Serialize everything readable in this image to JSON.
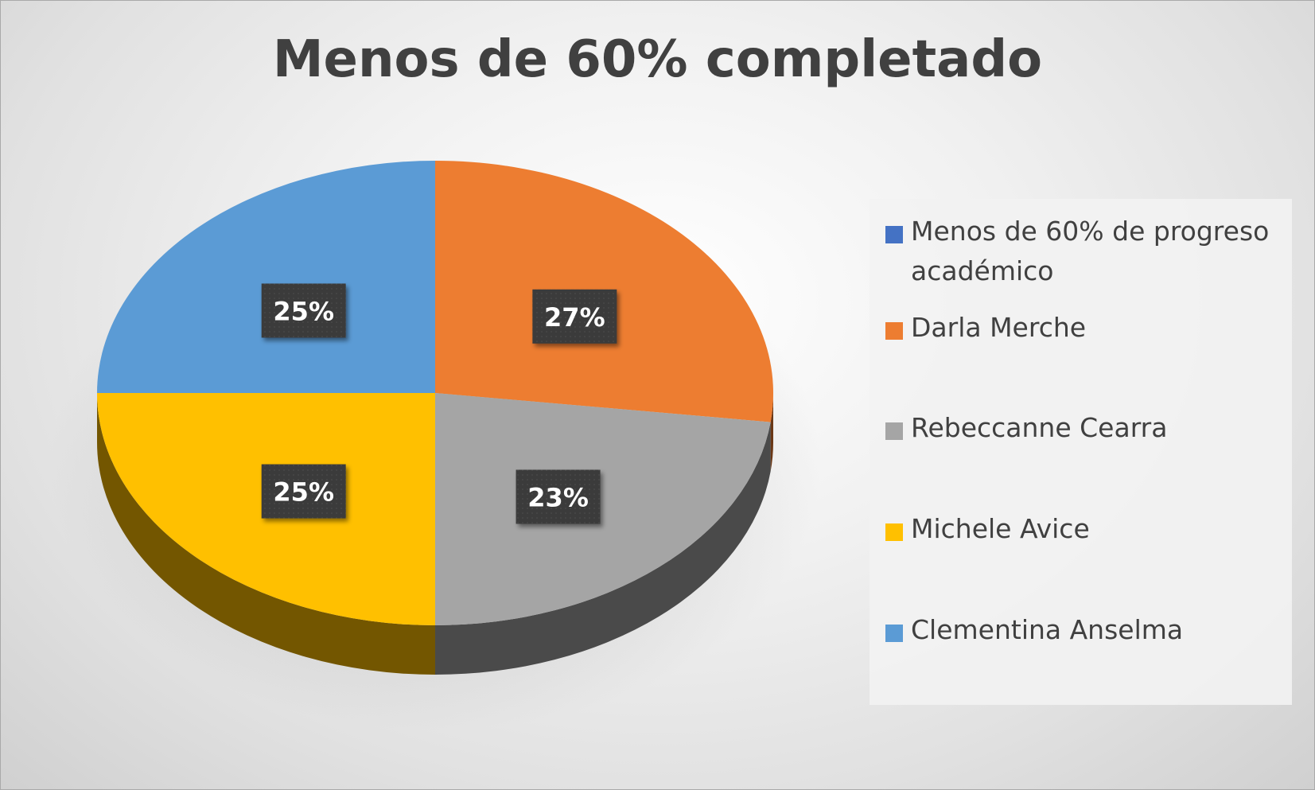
{
  "chart_data": {
    "type": "pie",
    "title": "Menos de 60% completado",
    "three_d": true,
    "legend_position": "right",
    "slices": [
      {
        "name": "Menos de 60% de progreso académico",
        "value": 0,
        "label": "",
        "color": "#4472C4"
      },
      {
        "name": "Darla Merche",
        "value": 27,
        "label": "27%",
        "color": "#ED7D31"
      },
      {
        "name": "Rebeccanne Cearra",
        "value": 23,
        "label": "23%",
        "color": "#A5A5A5"
      },
      {
        "name": "Michele Avice",
        "value": 25,
        "label": "25%",
        "color": "#FFC000"
      },
      {
        "name": "Clementina Anselma",
        "value": 25,
        "label": "25%",
        "color": "#5B9BD5"
      }
    ]
  }
}
